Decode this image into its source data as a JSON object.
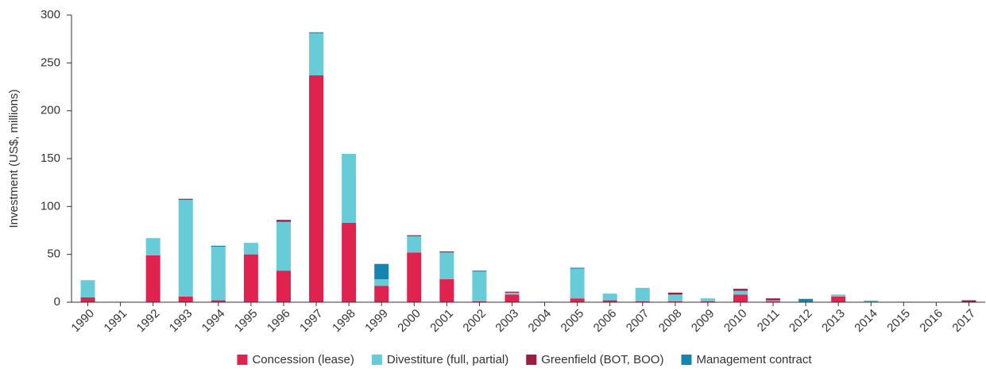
{
  "chart_data": {
    "type": "stacked_bar",
    "ylabel": "Investment (US$, millions)",
    "categories": [
      "1990",
      "1991",
      "1992",
      "1993",
      "1994",
      "1995",
      "1996",
      "1997",
      "1998",
      "1999",
      "2000",
      "2001",
      "2002",
      "2003",
      "2004",
      "2005",
      "2006",
      "2007",
      "2008",
      "2009",
      "2010",
      "2011",
      "2012",
      "2013",
      "2014",
      "2015",
      "2016",
      "2017"
    ],
    "series": [
      {
        "name": "Concession (lease)",
        "color": "#e0234e",
        "values": [
          5,
          0,
          49,
          6,
          2,
          50,
          33,
          237,
          83,
          17,
          52,
          24,
          1,
          8,
          0,
          4,
          2,
          1,
          1,
          1,
          8,
          1,
          0,
          6,
          0,
          0,
          0,
          0
        ]
      },
      {
        "name": "Divestiture (full, partial)",
        "color": "#67cbd8",
        "values": [
          18,
          0.5,
          18,
          101,
          56,
          12,
          51,
          44,
          72,
          7,
          17,
          28,
          31,
          2,
          0,
          31,
          7,
          14,
          7,
          3,
          4,
          1,
          0.5,
          2,
          1,
          0.5,
          0,
          0
        ]
      },
      {
        "name": "Greenfield (BOT, BOO)",
        "color": "#a01b40",
        "values": [
          0,
          0,
          0,
          1,
          0,
          0,
          2,
          0,
          0,
          0,
          1,
          1,
          0,
          1,
          0,
          0,
          0,
          0,
          2,
          0,
          2,
          2,
          0,
          0,
          0,
          0,
          0,
          2
        ]
      },
      {
        "name": "Management contract",
        "color": "#1485b0",
        "values": [
          0,
          0,
          0,
          0,
          1,
          0,
          0,
          1,
          0,
          16,
          0,
          0,
          1,
          0,
          0.5,
          1,
          0,
          0,
          0,
          0,
          0,
          0,
          3,
          0,
          0.5,
          0,
          0,
          0
        ]
      }
    ],
    "ylim": [
      0,
      300
    ],
    "yticks": [
      0,
      50,
      100,
      150,
      200,
      250,
      300
    ],
    "legend": "bottom"
  }
}
